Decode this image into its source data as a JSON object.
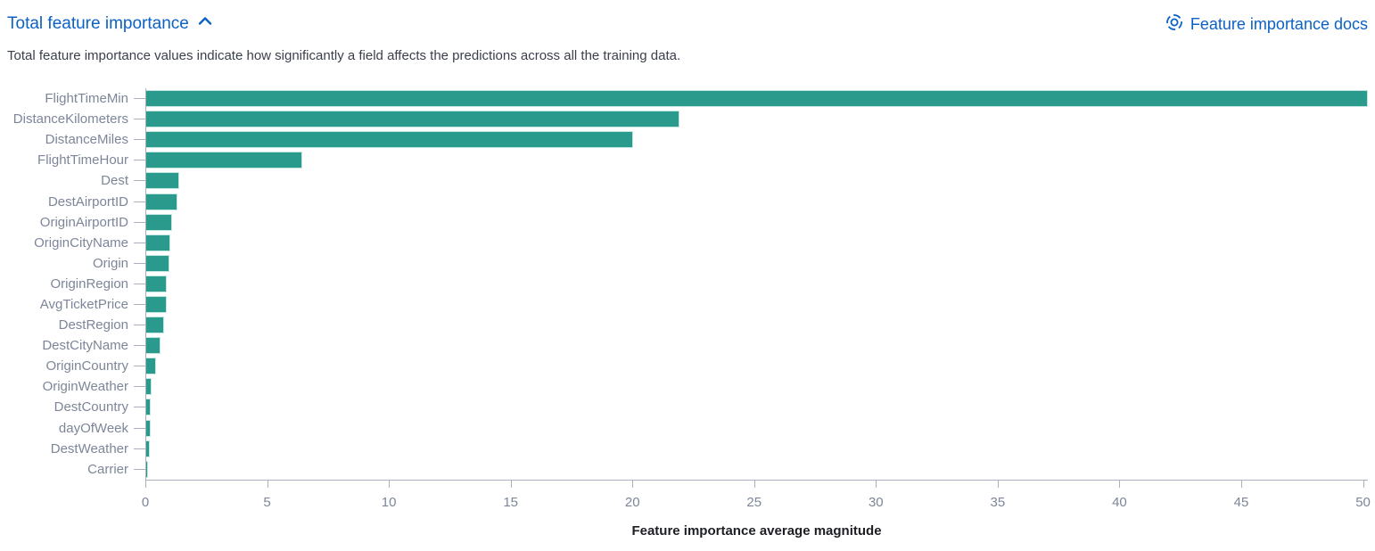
{
  "header": {
    "title": "Total feature importance",
    "collapse_icon": "chevron-up-icon",
    "docs_link_label": "Feature importance docs",
    "docs_icon": "lifering-help-icon"
  },
  "description": "Total feature importance values indicate how significantly a field affects the predictions across all the training data.",
  "colors": {
    "link_blue": "#0b62c5",
    "bar_fill": "#2a9a8d",
    "bar_border": "#c5e8e2",
    "axis_line": "#a9b0c0",
    "axis_text": "#7d8699",
    "description_text": "#3a3f4c",
    "axis_title_text": "#1d1e24"
  },
  "chart_data": {
    "type": "bar",
    "orientation": "horizontal",
    "title": "",
    "categories": [
      "FlightTimeMin",
      "DistanceKilometers",
      "DistanceMiles",
      "FlightTimeHour",
      "Dest",
      "DestAirportID",
      "OriginAirportID",
      "OriginCityName",
      "Origin",
      "OriginRegion",
      "AvgTicketPrice",
      "DestRegion",
      "DestCityName",
      "OriginCountry",
      "OriginWeather",
      "DestCountry",
      "dayOfWeek",
      "DestWeather",
      "Carrier"
    ],
    "values": [
      50.2,
      21.9,
      20.0,
      6.4,
      1.35,
      1.3,
      1.05,
      1.0,
      0.95,
      0.85,
      0.85,
      0.72,
      0.6,
      0.4,
      0.22,
      0.2,
      0.18,
      0.15,
      0.06
    ],
    "xlabel": "Feature importance average magnitude",
    "ylabel": "",
    "xticks": [
      0,
      5,
      10,
      15,
      20,
      25,
      30,
      35,
      40,
      45,
      50
    ],
    "xlim": [
      0,
      50.2
    ],
    "grid": false,
    "legend": false
  }
}
